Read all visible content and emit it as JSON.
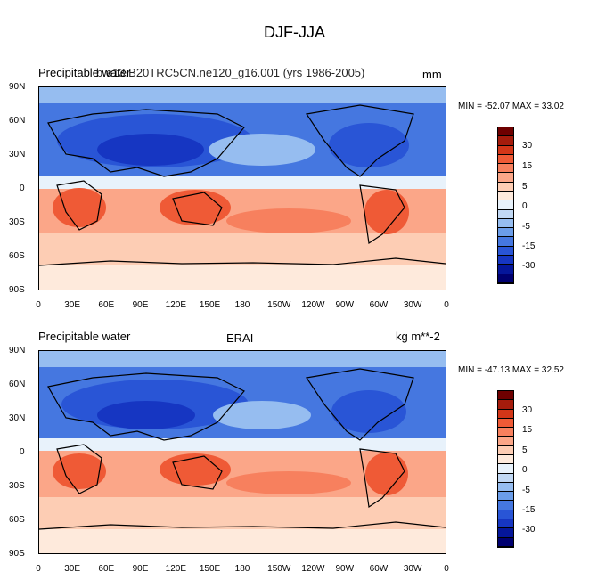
{
  "title": "DJF-JJA",
  "panels": [
    {
      "left_label": "Precipitable water",
      "center_label": "b.e13.B20TRC5CN.ne120_g16.001 (yrs 1986-2005)",
      "right_label": "mm",
      "minmax": "MIN = -52.07 MAX =  33.02"
    },
    {
      "left_label": "Precipitable water",
      "center_label": "ERAI",
      "right_label": "kg m**-2",
      "minmax": "MIN = -47.13 MAX =  32.52"
    }
  ],
  "lat_ticks": [
    "90N",
    "60N",
    "30N",
    "0",
    "30S",
    "60S",
    "90S"
  ],
  "lon_ticks": [
    "0",
    "30E",
    "60E",
    "90E",
    "120E",
    "150E",
    "180",
    "150W",
    "120W",
    "90W",
    "60W",
    "30W",
    "0"
  ],
  "colorbar": {
    "labels": [
      "30",
      "15",
      "5",
      "0",
      "-5",
      "-15",
      "-30"
    ],
    "colors": [
      "#6e0000",
      "#a51c0c",
      "#d33618",
      "#ef5a36",
      "#f7805e",
      "#fba688",
      "#fdcdb4",
      "#feeadc",
      "#e8f2fb",
      "#c1d8f4",
      "#96bdf0",
      "#6b9de9",
      "#4577e0",
      "#2955d6",
      "#1636c2",
      "#05169a",
      "#000070"
    ]
  }
}
